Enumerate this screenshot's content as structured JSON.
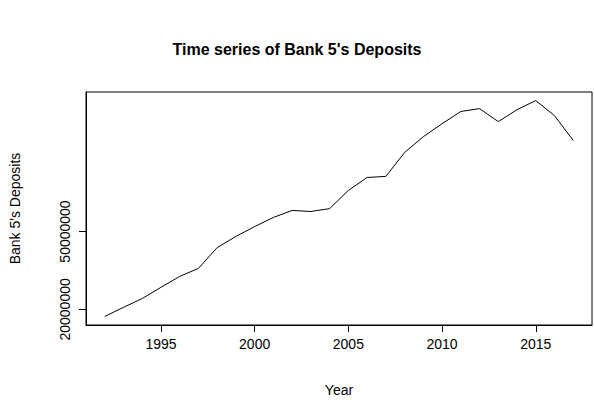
{
  "chart_data": {
    "type": "line",
    "title": "Time series of Bank 5's Deposits",
    "x_label": "Year",
    "y_label": "Bank 5's Deposits",
    "x": [
      1992,
      1993,
      1994,
      1995,
      1996,
      1997,
      1998,
      1999,
      2000,
      2001,
      2002,
      2003,
      2004,
      2005,
      2006,
      2007,
      2008,
      2009,
      2010,
      2011,
      2012,
      2013,
      2014,
      2015,
      2016,
      2017
    ],
    "values": [
      17300000,
      20800000,
      24200000,
      28500000,
      32700000,
      35800000,
      43800000,
      48100000,
      51900000,
      55400000,
      58100000,
      57700000,
      58800000,
      65800000,
      70800000,
      71200000,
      80400000,
      86500000,
      91500000,
      96200000,
      97300000,
      92300000,
      96900000,
      100400000,
      94600000,
      85000000
    ],
    "color": "#000000",
    "xlim": [
      1991,
      2018
    ],
    "xticks": [
      1995,
      2000,
      2005,
      2010,
      2015
    ],
    "ylim": [
      14000000,
      103700000
    ],
    "yticks": [
      20000000,
      50000000
    ],
    "grid": false
  }
}
